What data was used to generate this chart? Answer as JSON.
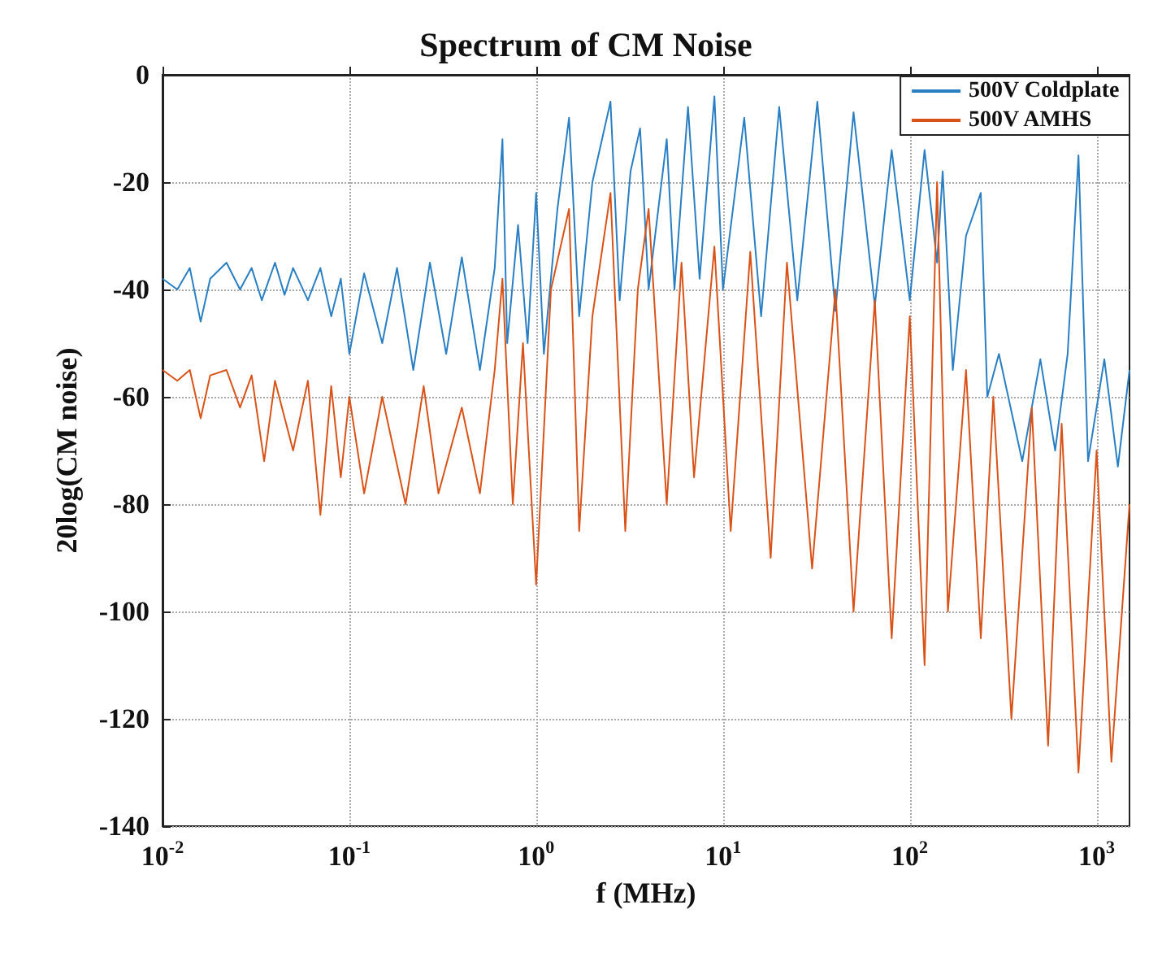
{
  "chart_data": {
    "type": "line",
    "title": "Spectrum of CM Noise",
    "xlabel": "f (MHz)",
    "ylabel": "20log(CM noise)",
    "log": "x",
    "grid": true,
    "legend": "top right",
    "marker": "none",
    "line_style": "solid",
    "xlim": [
      0.01,
      1500
    ],
    "ylim": [
      -140,
      0
    ],
    "xticks": [
      {
        "value": 0.01,
        "label": "10$^{-2}$"
      },
      {
        "value": 0.1,
        "label": "10$^{-1}$"
      },
      {
        "value": 1,
        "label": "10$^{0}$"
      },
      {
        "value": 10,
        "label": "10$^{1}$"
      },
      {
        "value": 100,
        "label": "10$^{2}$"
      },
      {
        "value": 1000,
        "label": "10$^{3}$"
      }
    ],
    "yticks": [
      -140,
      -120,
      -100,
      -80,
      -60,
      -40,
      -20,
      0
    ],
    "series": [
      {
        "name": "500V Coldplate",
        "color": "#2a7fc4",
        "x": [
          0.01,
          0.012,
          0.014,
          0.016,
          0.018,
          0.022,
          0.026,
          0.03,
          0.034,
          0.04,
          0.045,
          0.05,
          0.06,
          0.07,
          0.08,
          0.09,
          0.1,
          0.12,
          0.15,
          0.18,
          0.22,
          0.27,
          0.33,
          0.4,
          0.5,
          0.6,
          0.66,
          0.7,
          0.8,
          0.9,
          1.0,
          1.1,
          1.3,
          1.5,
          1.7,
          2.0,
          2.5,
          2.8,
          3.2,
          3.6,
          4.0,
          5,
          5.5,
          6.5,
          7.5,
          9,
          10,
          13,
          16,
          20,
          25,
          32,
          40,
          50,
          65,
          80,
          100,
          120,
          140,
          150,
          170,
          200,
          240,
          260,
          300,
          400,
          500,
          600,
          700,
          800,
          900,
          1100,
          1300,
          1500
        ],
        "values": [
          -38,
          -40,
          -36,
          -46,
          -38,
          -35,
          -40,
          -36,
          -42,
          -35,
          -41,
          -36,
          -42,
          -36,
          -45,
          -38,
          -52,
          -37,
          -50,
          -36,
          -55,
          -35,
          -52,
          -34,
          -55,
          -36,
          -12,
          -50,
          -28,
          -50,
          -22,
          -52,
          -25,
          -8,
          -45,
          -20,
          -5,
          -42,
          -18,
          -10,
          -40,
          -12,
          -40,
          -6,
          -38,
          -4,
          -40,
          -8,
          -45,
          -6,
          -42,
          -5,
          -44,
          -7,
          -43,
          -14,
          -42,
          -14,
          -35,
          -18,
          -55,
          -30,
          -22,
          -60,
          -52,
          -72,
          -53,
          -70,
          -52,
          -15,
          -72,
          -53,
          -73,
          -55
        ]
      },
      {
        "name": "500V AMHS",
        "color": "#d95319",
        "x": [
          0.01,
          0.012,
          0.014,
          0.016,
          0.018,
          0.022,
          0.026,
          0.03,
          0.035,
          0.04,
          0.05,
          0.06,
          0.07,
          0.08,
          0.09,
          0.1,
          0.12,
          0.15,
          0.2,
          0.25,
          0.3,
          0.4,
          0.5,
          0.6,
          0.66,
          0.75,
          0.85,
          1.0,
          1.2,
          1.5,
          1.7,
          2,
          2.5,
          3,
          3.5,
          4,
          5,
          6,
          7,
          9,
          11,
          14,
          18,
          22,
          30,
          40,
          50,
          65,
          80,
          100,
          120,
          140,
          160,
          200,
          240,
          280,
          350,
          450,
          550,
          650,
          800,
          1000,
          1200,
          1500
        ],
        "values": [
          -55,
          -57,
          -55,
          -64,
          -56,
          -55,
          -62,
          -56,
          -72,
          -57,
          -70,
          -57,
          -82,
          -58,
          -75,
          -60,
          -78,
          -60,
          -80,
          -58,
          -78,
          -62,
          -78,
          -55,
          -38,
          -80,
          -50,
          -95,
          -40,
          -25,
          -85,
          -45,
          -22,
          -85,
          -40,
          -25,
          -80,
          -35,
          -75,
          -32,
          -85,
          -33,
          -90,
          -35,
          -92,
          -40,
          -100,
          -42,
          -105,
          -45,
          -110,
          -20,
          -100,
          -55,
          -105,
          -60,
          -120,
          -62,
          -125,
          -65,
          -130,
          -70,
          -128,
          -80
        ]
      }
    ]
  }
}
